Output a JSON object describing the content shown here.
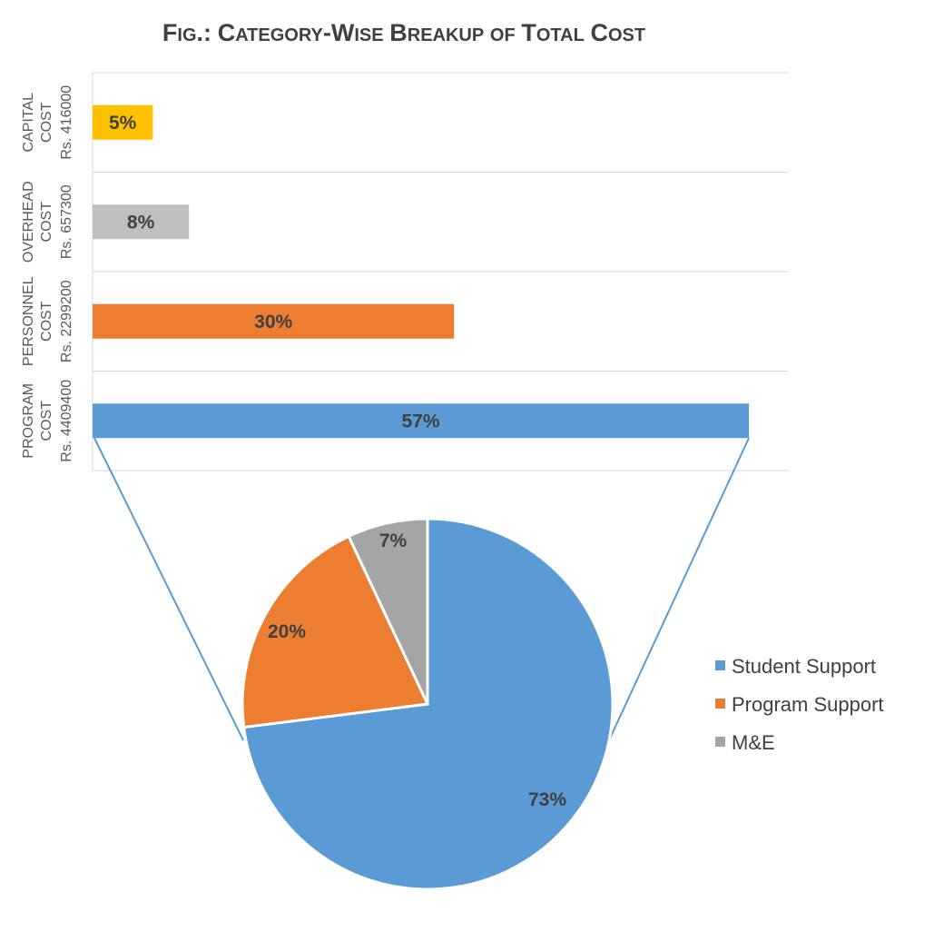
{
  "title": "Fig.: Category-Wise Breakup of Total Cost",
  "colors": {
    "blue": "#5b9bd5",
    "orange": "#ed7d31",
    "gray": "#a5a5a5",
    "lightgray": "#bfbfbf",
    "gold": "#ffc000",
    "connector": "#5b9bd5"
  },
  "chart_data": [
    {
      "type": "bar",
      "orientation": "horizontal",
      "categories": [
        [
          "CAPITAL",
          "COST",
          "Rs. 416000"
        ],
        [
          "OVERHEAD",
          "COST",
          "Rs. 657300"
        ],
        [
          "PERSONNEL",
          "COST",
          "Rs. 2299200"
        ],
        [
          "PROGRAM",
          "COST",
          "Rs. 4409400"
        ]
      ],
      "values": [
        5,
        8,
        30,
        57
      ],
      "labels": [
        "5%",
        "8%",
        "30%",
        "57%"
      ],
      "bar_colors": [
        "gold",
        "lightgray",
        "orange",
        "blue"
      ],
      "xlim": [
        0,
        60
      ],
      "grid": true
    },
    {
      "type": "pie",
      "detail_of": "PROGRAM COST",
      "categories": [
        "Student Support",
        "Program Support",
        "M&E"
      ],
      "values": [
        73,
        20,
        7
      ],
      "labels": [
        "73%",
        "20%",
        "7%"
      ],
      "slice_colors": [
        "blue",
        "orange",
        "gray"
      ],
      "legend": "right"
    }
  ]
}
